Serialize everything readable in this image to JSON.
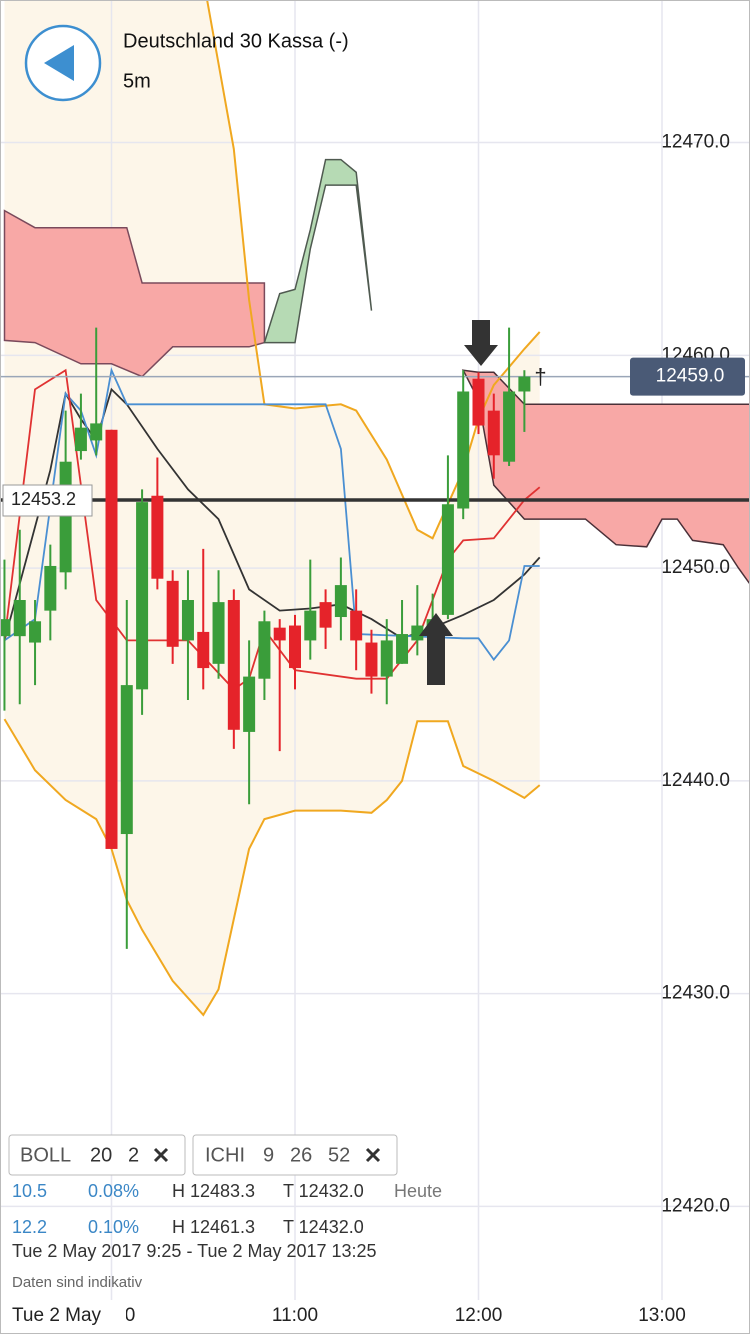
{
  "header": {
    "title": "Deutschland 30 Kassa (-)",
    "interval": "5m"
  },
  "chart_data": {
    "type": "candlestick",
    "x": [
      "9:25",
      "9:30",
      "9:35",
      "9:40",
      "9:45",
      "9:50",
      "9:55",
      "10:00",
      "10:05",
      "10:10",
      "10:15",
      "10:20",
      "10:25",
      "10:30",
      "10:35",
      "10:40",
      "10:45",
      "10:50",
      "10:55",
      "11:00",
      "11:05",
      "11:10",
      "11:15",
      "11:20",
      "11:25",
      "11:30",
      "11:35",
      "11:40",
      "11:45",
      "11:50",
      "11:55",
      "12:00",
      "12:05",
      "12:10",
      "12:15"
    ],
    "open": [
      12446.8,
      12446.8,
      12446.5,
      12448.0,
      12449.8,
      12455.5,
      12456.0,
      12456.5,
      12437.5,
      12444.3,
      12453.4,
      12449.4,
      12446.6,
      12447.0,
      12445.5,
      12448.5,
      12442.3,
      12444.8,
      12447.2,
      12447.3,
      12446.6,
      12448.4,
      12447.7,
      12448.0,
      12446.5,
      12444.9,
      12445.5,
      12446.6,
      12447.0,
      12447.8,
      12452.8,
      12458.9,
      12457.4,
      12455.0,
      12458.3
    ],
    "high": [
      12450.4,
      12451.8,
      12448.5,
      12451.1,
      12457.4,
      12458.2,
      12461.3,
      12456.5,
      12448.5,
      12453.7,
      12455.2,
      12449.9,
      12449.9,
      12450.9,
      12449.9,
      12449.0,
      12446.6,
      12448.0,
      12447.6,
      12447.8,
      12450.4,
      12449.0,
      12450.5,
      12449.0,
      12447.1,
      12447.6,
      12448.5,
      12449.2,
      12448.8,
      12455.3,
      12459.3,
      12459.2,
      12458.2,
      12461.3,
      12459.3
    ],
    "low": [
      12443.3,
      12443.6,
      12444.5,
      12446.6,
      12449.0,
      12455.1,
      12455.3,
      12436.8,
      12432.1,
      12443.1,
      12449.0,
      12445.5,
      12443.8,
      12444.3,
      12444.8,
      12441.5,
      12438.9,
      12443.8,
      12441.4,
      12444.3,
      12445.7,
      12446.2,
      12446.6,
      12445.2,
      12444.1,
      12443.6,
      12445.5,
      12445.9,
      12446.6,
      12447.6,
      12452.3,
      12456.3,
      12454.2,
      12454.8,
      12456.4
    ],
    "close": [
      12447.6,
      12448.5,
      12447.5,
      12450.1,
      12455.0,
      12456.6,
      12456.8,
      12436.8,
      12444.5,
      12453.1,
      12449.5,
      12446.3,
      12448.5,
      12445.3,
      12448.4,
      12442.4,
      12444.9,
      12447.5,
      12446.6,
      12445.3,
      12448.0,
      12447.2,
      12449.2,
      12446.6,
      12444.9,
      12446.6,
      12446.9,
      12447.3,
      12447.6,
      12453.0,
      12458.3,
      12456.7,
      12455.3,
      12458.3,
      12459.0
    ],
    "up_color": "#3a9d3a",
    "down_color": "#e5232a",
    "ylim": [
      12415.6,
      12476.7
    ],
    "yticks": [
      {
        "value": 12420,
        "label": "12420.0"
      },
      {
        "value": 12430,
        "label": "12430.0"
      },
      {
        "value": 12440,
        "label": "12440.0"
      },
      {
        "value": 12450,
        "label": "12450.0"
      },
      {
        "value": 12460,
        "label": "12460.0"
      },
      {
        "value": 12470,
        "label": "12470.0"
      }
    ],
    "xticks": [
      "10:00",
      "11:00",
      "12:00",
      "13:00"
    ],
    "x_date_label": "Tue 2 May",
    "grid": true,
    "bollinger": {
      "color": "#f0a820",
      "fill": "#fdf6e9",
      "upper": {
        "x": [
          "9:25",
          "10:00",
          "10:20",
          "10:30",
          "10:40",
          "10:45",
          "10:50",
          "11:00",
          "11:15",
          "11:20",
          "11:30",
          "11:40",
          "11:45",
          "11:55",
          "12:00",
          "12:05",
          "12:15",
          "12:20"
        ],
        "values": [
          12482,
          12484,
          12480,
          12477.7,
          12469.7,
          12462.6,
          12457.7,
          12457.5,
          12457.7,
          12457.4,
          12455.1,
          12451.8,
          12451.4,
          12454.6,
          12457.0,
          12458.6,
          12460.3,
          12461.1
        ]
      },
      "lower": {
        "x": [
          "9:25",
          "9:35",
          "9:45",
          "9:55",
          "10:00",
          "10:05",
          "10:10",
          "10:20",
          "10:30",
          "10:35",
          "10:40",
          "10:45",
          "10:50",
          "11:00",
          "11:15",
          "11:25",
          "11:30",
          "11:35",
          "11:40",
          "11:50",
          "11:55",
          "12:05",
          "12:15",
          "12:20"
        ],
        "values": [
          12442.9,
          12440.5,
          12439.1,
          12438.2,
          12436.8,
          12434.4,
          12433.0,
          12430.6,
          12429.0,
          12430.2,
          12433.5,
          12436.8,
          12438.2,
          12438.6,
          12438.6,
          12438.5,
          12439.1,
          12440.0,
          12442.8,
          12442.8,
          12440.7,
          12440.0,
          12439.2,
          12439.8
        ]
      }
    },
    "clouds": [
      {
        "color": "#f8a8a6",
        "stroke": "#7a4a5c",
        "x": [
          "9:25",
          "9:35",
          "9:50",
          "10:00",
          "10:05",
          "10:10",
          "10:20",
          "10:45",
          "10:50"
        ],
        "upper": [
          12466.8,
          12466.0,
          12466.0,
          12466.0,
          12466.0,
          12463.4,
          12463.4,
          12463.4,
          12463.4
        ],
        "lower": [
          12460.7,
          12460.6,
          12459.6,
          12459.6,
          12459.3,
          12459.0,
          12460.4,
          12460.4,
          12460.6
        ]
      },
      {
        "color": "#b6dab4",
        "stroke": "#4f5a50",
        "x": [
          "10:50",
          "10:55",
          "11:00",
          "11:05",
          "11:10",
          "11:15",
          "11:20",
          "11:25"
        ],
        "upper": [
          12460.6,
          12462.9,
          12463.1,
          12465.9,
          12469.2,
          12469.2,
          12468.6,
          12462.1
        ],
        "lower": [
          12460.6,
          12460.6,
          12460.6,
          12465.0,
          12468.0,
          12468.0,
          12468.0,
          12462.1
        ]
      },
      {
        "color": "#f8a8a6",
        "stroke": "#4a3038",
        "x": [
          "11:55",
          "12:00",
          "12:05",
          "12:15",
          "12:35",
          "12:45",
          "12:55",
          "13:00",
          "13:05",
          "13:10",
          "13:20",
          "13:25",
          "13:30"
        ],
        "upper": [
          12459.3,
          12459.2,
          12459.2,
          12457.7,
          12457.7,
          12457.7,
          12457.7,
          12457.7,
          12457.7,
          12457.7,
          12457.7,
          12457.7,
          12457.7
        ],
        "lower": [
          12459.3,
          12457.9,
          12453.9,
          12452.3,
          12452.3,
          12451.1,
          12451.0,
          12452.3,
          12452.3,
          12451.3,
          12451.1,
          12450.0,
          12449.0
        ]
      }
    ],
    "lines": [
      {
        "color": "#333333",
        "x": [
          "9:25",
          "9:40",
          "9:45",
          "9:50",
          "9:55",
          "10:00",
          "10:05",
          "10:15",
          "10:25",
          "10:35",
          "10:45",
          "10:55",
          "11:05",
          "11:15",
          "11:25",
          "11:35",
          "11:45",
          "11:55",
          "12:05",
          "12:15",
          "12:20"
        ],
        "values": [
          12446.6,
          12454.6,
          12458.2,
          12457.0,
          12456.0,
          12458.4,
          12457.7,
          12455.6,
          12453.7,
          12452.3,
          12449.0,
          12448.0,
          12448.1,
          12448.3,
          12447.6,
          12446.7,
          12447.2,
          12447.8,
          12448.5,
          12449.7,
          12450.5
        ]
      },
      {
        "color": "#4a8fd2",
        "x": [
          "9:25",
          "9:35",
          "9:45",
          "9:50",
          "9:55",
          "10:00",
          "10:05",
          "11:10",
          "11:15",
          "11:20",
          "11:55",
          "12:00",
          "12:05",
          "12:10",
          "12:15",
          "12:20"
        ],
        "values": [
          12446.6,
          12447.6,
          12458.2,
          12457.4,
          12455.3,
          12459.3,
          12457.7,
          12457.7,
          12455.6,
          12446.9,
          12446.7,
          12446.7,
          12445.7,
          12446.6,
          12450.1,
          12450.1
        ]
      },
      {
        "color": "#e03232",
        "x": [
          "9:25",
          "9:35",
          "9:45",
          "9:55",
          "10:05",
          "10:25",
          "10:40",
          "10:45",
          "10:50",
          "11:00",
          "11:20",
          "11:30",
          "11:40",
          "11:50",
          "11:55",
          "12:05",
          "12:15",
          "12:20"
        ],
        "values": [
          12446.6,
          12458.4,
          12459.3,
          12448.5,
          12446.6,
          12446.6,
          12444.3,
          12444.8,
          12447.1,
          12445.2,
          12444.8,
          12444.8,
          12446.6,
          12450.4,
          12451.3,
          12451.4,
          12453.2,
          12453.8
        ]
      }
    ],
    "level_line": {
      "value": 12453.2,
      "label": "12453.2"
    },
    "price_line": {
      "value": 12459.0,
      "label": "12459.0"
    },
    "annotation": "†"
  },
  "indicator_tags": [
    {
      "name": "BOLL",
      "params": [
        "20",
        "2"
      ]
    },
    {
      "name": "ICHI",
      "params": [
        "9",
        "26",
        "52"
      ]
    }
  ],
  "stats": [
    [
      "10.5",
      "0.08%",
      "H 12483.3",
      "T 12432.0",
      "Heute"
    ],
    [
      "12.2",
      "0.10%",
      "H 12461.3",
      "T 12432.0"
    ]
  ],
  "range": "Tue 2 May 2017 9:25 - Tue 2 May 2017 13:25",
  "disclaimer": "Daten sind indikativ"
}
